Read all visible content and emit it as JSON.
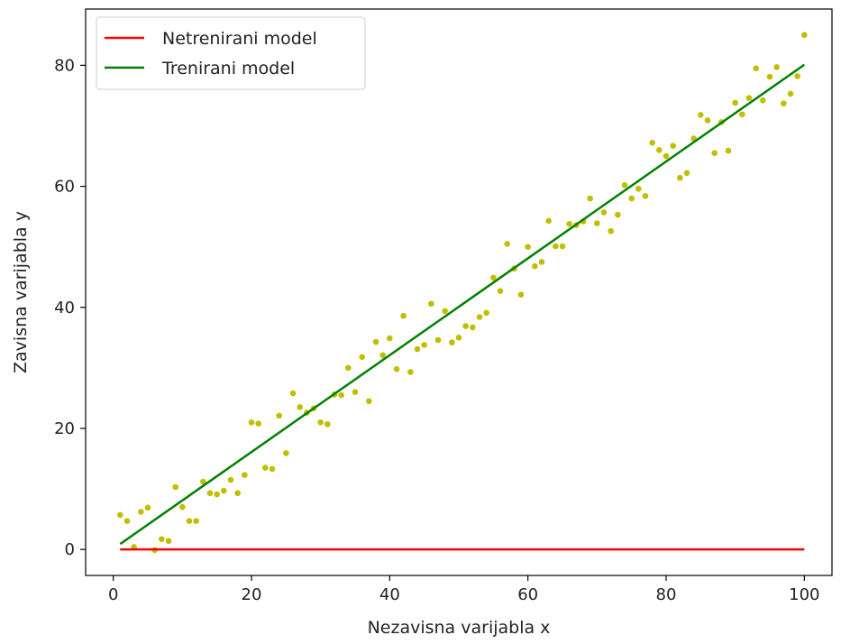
{
  "chart_data": {
    "type": "scatter",
    "title": "",
    "xlabel": "Nezavisna varijabla x",
    "ylabel": "Zavisna varijabla y",
    "xlim": [
      -4,
      104
    ],
    "ylim": [
      -4.3,
      89.3
    ],
    "xticks": [
      0,
      20,
      40,
      60,
      80,
      100
    ],
    "yticks": [
      0,
      20,
      40,
      60,
      80
    ],
    "grid": false,
    "legend_position": "top-left",
    "points": {
      "color": "#bfbf00",
      "x": [
        1,
        2,
        3,
        4,
        5,
        6,
        7,
        8,
        9,
        10,
        11,
        12,
        13,
        14,
        15,
        16,
        17,
        18,
        19,
        20,
        21,
        22,
        23,
        24,
        25,
        26,
        27,
        28,
        29,
        30,
        31,
        32,
        33,
        34,
        35,
        36,
        37,
        38,
        39,
        40,
        41,
        42,
        43,
        44,
        45,
        46,
        47,
        48,
        49,
        50,
        51,
        52,
        53,
        54,
        55,
        56,
        57,
        58,
        59,
        60,
        61,
        62,
        63,
        64,
        65,
        66,
        67,
        68,
        69,
        70,
        71,
        72,
        73,
        74,
        75,
        76,
        77,
        78,
        79,
        80,
        81,
        82,
        83,
        84,
        85,
        86,
        87,
        88,
        89,
        90,
        91,
        92,
        93,
        94,
        95,
        96,
        97,
        98,
        99,
        100
      ],
      "y": [
        5.7,
        4.7,
        0.4,
        6.2,
        6.9,
        -0.1,
        1.7,
        1.4,
        10.3,
        7.0,
        4.7,
        4.7,
        11.2,
        9.3,
        9.1,
        9.7,
        11.5,
        9.3,
        12.3,
        21.0,
        20.8,
        13.5,
        13.3,
        22.1,
        15.9,
        25.8,
        23.5,
        22.6,
        23.3,
        21.0,
        20.7,
        25.6,
        25.5,
        30.0,
        26.0,
        31.8,
        24.5,
        34.3,
        32.1,
        34.9,
        29.8,
        38.6,
        29.3,
        33.1,
        33.8,
        40.6,
        34.6,
        39.4,
        34.2,
        35.0,
        36.9,
        36.7,
        38.4,
        39.1,
        44.9,
        42.7,
        50.5,
        46.4,
        42.1,
        50.0,
        46.8,
        47.5,
        54.3,
        50.1,
        50.1,
        53.8,
        53.6,
        54.2,
        58.0,
        53.9,
        55.7,
        52.6,
        55.3,
        60.2,
        58.0,
        59.6,
        58.4,
        67.2,
        66.0,
        65.0,
        66.7,
        61.4,
        62.2,
        67.9,
        71.8,
        70.9,
        65.5,
        70.6,
        65.9,
        73.8,
        71.9,
        74.6,
        79.5,
        74.2,
        78.1,
        79.7,
        73.7,
        75.3,
        78.2,
        85.0
      ]
    },
    "series": [
      {
        "name": "Netrenirani model",
        "color": "#ff0000",
        "x": [
          1,
          100
        ],
        "y": [
          0,
          0
        ]
      },
      {
        "name": "Trenirani model",
        "color": "#008000",
        "x": [
          1,
          100
        ],
        "y": [
          0.9,
          80.1
        ]
      }
    ]
  }
}
